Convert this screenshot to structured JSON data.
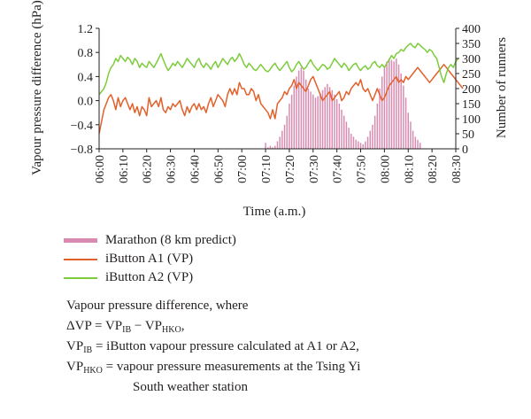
{
  "chart_data": {
    "type": "line",
    "xlabel": "Time (a.m.)",
    "ylabel_left": "Vapour pressure difference (hPa)",
    "ylabel_right": "Number of runners",
    "y_left": {
      "min": -0.8,
      "max": 1.2,
      "ticks": [
        "1.2",
        "0.8",
        "0.4",
        "0.0",
        "−0.4",
        "−0.8"
      ]
    },
    "y_right": {
      "min": 0,
      "max": 400,
      "ticks": [
        "400",
        "350",
        "300",
        "250",
        "200",
        "150",
        "100",
        "50",
        "0"
      ]
    },
    "x_ticks": [
      "06:00",
      "06:10",
      "06:20",
      "06:30",
      "06:40",
      "06:50",
      "07:00",
      "07:10",
      "07:20",
      "07:30",
      "07:40",
      "07:50",
      "08:00",
      "08:10",
      "08:20",
      "08:30"
    ],
    "x_range_minutes_after_6am": [
      0,
      150
    ],
    "series": [
      {
        "name": "Marathon (8 km predict)",
        "kind": "bar",
        "axis": "right",
        "color": "#d98ab0",
        "x_start": "07:10",
        "x_step_minutes": 1,
        "values": [
          20,
          5,
          10,
          5,
          10,
          25,
          40,
          60,
          80,
          110,
          150,
          180,
          210,
          240,
          260,
          270,
          260,
          230,
          200,
          190,
          180,
          170,
          175,
          185,
          195,
          205,
          215,
          205,
          195,
          180,
          165,
          150,
          130,
          110,
          90,
          70,
          50,
          40,
          30,
          25,
          20,
          15,
          25,
          40,
          60,
          80,
          110,
          150,
          200,
          240,
          270,
          290,
          300,
          295,
          290,
          300,
          280,
          250,
          210,
          170,
          120,
          90,
          60,
          40,
          30,
          20
        ]
      },
      {
        "name": "iButton A1 (VP)",
        "kind": "line",
        "axis": "left",
        "color": "#e2612b",
        "x_start": "06:00",
        "x_step_minutes": 1,
        "values": [
          -0.55,
          -0.35,
          -0.15,
          -0.05,
          0.05,
          0.1,
          0.0,
          -0.15,
          0.05,
          -0.1,
          0.0,
          0.05,
          -0.05,
          -0.15,
          -0.05,
          -0.2,
          -0.1,
          -0.25,
          -0.1,
          -0.15,
          -0.25,
          0.05,
          -0.1,
          -0.05,
          0.0,
          -0.1,
          0.05,
          -0.15,
          -0.2,
          -0.1,
          -0.15,
          -0.05,
          -0.1,
          -0.05,
          0.0,
          -0.15,
          -0.25,
          -0.1,
          -0.2,
          -0.1,
          -0.05,
          -0.15,
          -0.05,
          -0.15,
          -0.1,
          -0.2,
          -0.05,
          0.05,
          -0.1,
          0.0,
          0.1,
          0.05,
          0.0,
          -0.1,
          0.1,
          0.2,
          0.1,
          0.2,
          0.1,
          0.3,
          0.2,
          0.2,
          0.1,
          0.1,
          0.2,
          0.15,
          0.0,
          0.1,
          -0.05,
          -0.1,
          -0.15,
          -0.2,
          -0.3,
          -0.15,
          -0.3,
          -0.05,
          0.0,
          0.05,
          0.15,
          0.1,
          0.2,
          0.25,
          0.35,
          0.2,
          0.3,
          0.25,
          0.2,
          0.15,
          0.25,
          0.35,
          0.4,
          0.3,
          0.2,
          0.1,
          0.0,
          0.05,
          0.1,
          0.15,
          0.0,
          0.05,
          0.1,
          0.15,
          0.0,
          0.05,
          0.15,
          0.1,
          0.2,
          0.25,
          0.3,
          0.25,
          0.35,
          0.2,
          0.15,
          0.2,
          0.1,
          0.0,
          0.1,
          0.2,
          0.1,
          0.0,
          0.05,
          0.15,
          0.25,
          0.3,
          0.35,
          0.4,
          0.3,
          0.35,
          0.3,
          0.4,
          0.35,
          0.4,
          0.45,
          0.5,
          0.55,
          0.5,
          0.45,
          0.4,
          0.35,
          0.3,
          0.35,
          0.4,
          0.45,
          0.5,
          0.55,
          0.6,
          0.55,
          0.5,
          0.45,
          0.4,
          0.35,
          0.3,
          0.25,
          0.2
        ]
      },
      {
        "name": "iButton A2 (VP)",
        "kind": "line",
        "axis": "left",
        "color": "#7ccc3b",
        "x_start": "06:00",
        "x_step_minutes": 1,
        "values": [
          0.1,
          0.15,
          0.2,
          0.3,
          0.45,
          0.55,
          0.6,
          0.7,
          0.65,
          0.75,
          0.7,
          0.65,
          0.72,
          0.68,
          0.6,
          0.7,
          0.65,
          0.55,
          0.62,
          0.58,
          0.55,
          0.65,
          0.6,
          0.55,
          0.62,
          0.7,
          0.78,
          0.68,
          0.58,
          0.5,
          0.55,
          0.62,
          0.58,
          0.65,
          0.6,
          0.55,
          0.62,
          0.7,
          0.65,
          0.6,
          0.55,
          0.65,
          0.7,
          0.6,
          0.55,
          0.62,
          0.58,
          0.52,
          0.6,
          0.65,
          0.55,
          0.62,
          0.7,
          0.65,
          0.6,
          0.68,
          0.72,
          0.65,
          0.7,
          0.78,
          0.7,
          0.6,
          0.55,
          0.62,
          0.58,
          0.52,
          0.5,
          0.55,
          0.6,
          0.55,
          0.5,
          0.48,
          0.52,
          0.58,
          0.62,
          0.55,
          0.5,
          0.55,
          0.6,
          0.65,
          0.55,
          0.48,
          0.52,
          0.6,
          0.65,
          0.58,
          0.52,
          0.55,
          0.62,
          0.68,
          0.6,
          0.55,
          0.5,
          0.55,
          0.6,
          0.58,
          0.52,
          0.55,
          0.62,
          0.7,
          0.65,
          0.6,
          0.55,
          0.62,
          0.58,
          0.5,
          0.55,
          0.6,
          0.62,
          0.55,
          0.5,
          0.55,
          0.58,
          0.52,
          0.55,
          0.62,
          0.65,
          0.58,
          0.55,
          0.6,
          0.55,
          0.62,
          0.68,
          0.75,
          0.7,
          0.78,
          0.8,
          0.85,
          0.82,
          0.88,
          0.92,
          0.95,
          0.9,
          0.88,
          0.95,
          0.92,
          0.88,
          0.85,
          0.8,
          0.85,
          0.82,
          0.75,
          0.7,
          0.55,
          0.4,
          0.3,
          0.45,
          0.55,
          0.6,
          0.55,
          0.65,
          0.7
        ]
      }
    ]
  },
  "legend": [
    {
      "label": "Marathon (8 km predict)",
      "color": "#d98ab0",
      "style": "bar"
    },
    {
      "label": "iButton A1 (VP)",
      "color": "#e2612b",
      "style": "line"
    },
    {
      "label": "iButton A2 (VP)",
      "color": "#7ccc3b",
      "style": "line"
    }
  ],
  "note": {
    "line1": "Vapour pressure difference, where",
    "dvp_lhs": "ΔVP = VP",
    "sub_ib": "IB",
    "dvp_minus": " − VP",
    "sub_hko": "HKO",
    "dvp_end": ",",
    "vpib_lhs": "VP",
    "vpib_rhs": " = iButton vapour pressure calculated at A1 or A2,",
    "vphko_lhs": "VP",
    "vphko_rhs": " = vapour pressure measurements at the Tsing Yi",
    "line5": "South weather station"
  }
}
